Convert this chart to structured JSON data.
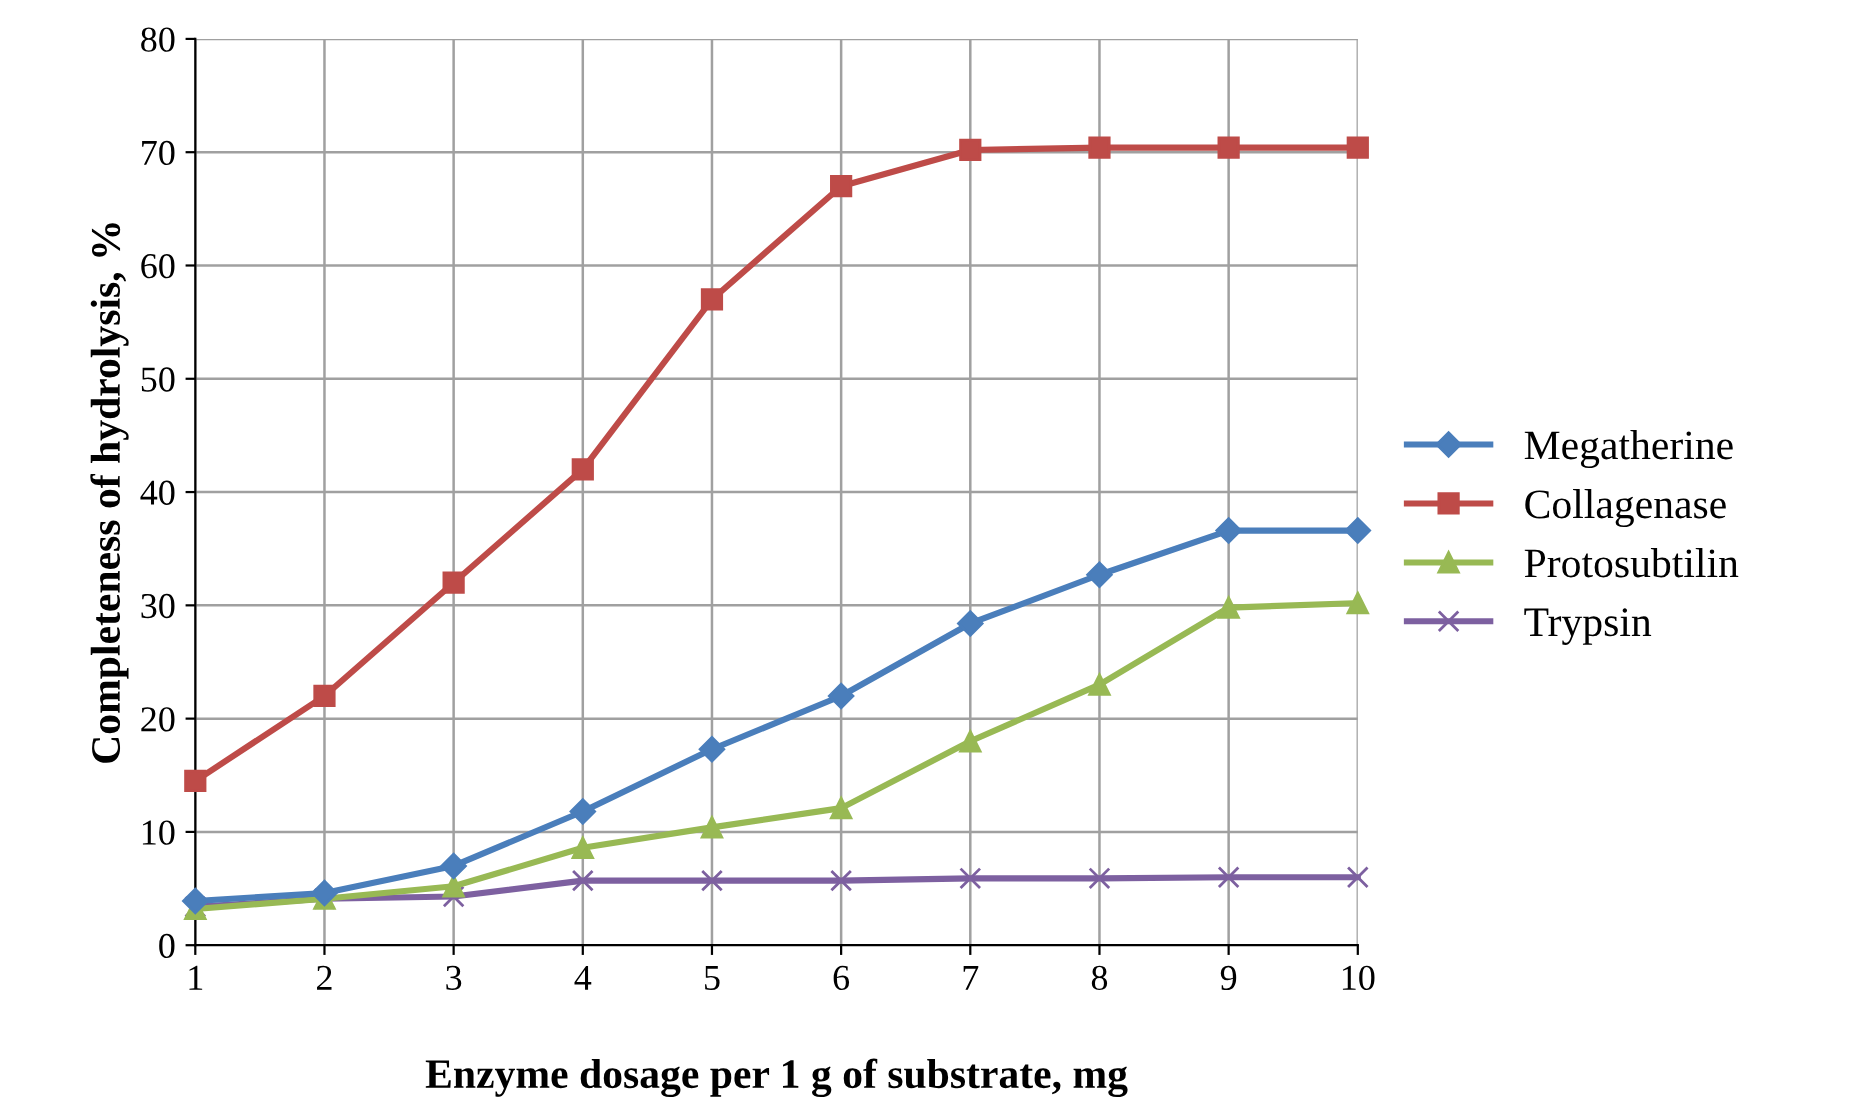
{
  "chart_data": {
    "type": "line",
    "xlabel": "Enzyme dosage per 1 g of substrate, mg",
    "ylabel": "Completeness of hydrolysis, %",
    "x": [
      1,
      2,
      3,
      4,
      5,
      6,
      7,
      8,
      9,
      10
    ],
    "series": [
      {
        "name": "Megatherine",
        "color": "#4a7ebb",
        "marker": "diamond",
        "values": [
          3.9,
          4.6,
          7.0,
          11.8,
          17.3,
          22.0,
          28.4,
          32.7,
          36.6,
          36.6
        ]
      },
      {
        "name": "Collagenase",
        "color": "#be4b48",
        "marker": "square",
        "values": [
          14.5,
          22.0,
          32.0,
          42.0,
          57.0,
          67.0,
          70.2,
          70.4,
          70.4,
          70.4
        ]
      },
      {
        "name": "Protosubtilin",
        "color": "#98b954",
        "marker": "triangle",
        "values": [
          3.2,
          4.1,
          5.2,
          8.6,
          10.4,
          12.1,
          18.0,
          23.0,
          29.8,
          30.2
        ]
      },
      {
        "name": "Trypsin",
        "color": "#7d60a0",
        "marker": "cross",
        "values": [
          3.4,
          4.1,
          4.3,
          5.7,
          5.7,
          5.7,
          5.9,
          5.9,
          6.0,
          6.0
        ]
      }
    ],
    "xlim": [
      1,
      10
    ],
    "xticks": [
      1,
      2,
      3,
      4,
      5,
      6,
      7,
      8,
      9,
      10
    ],
    "ylim": [
      0,
      80
    ],
    "yticks": [
      0,
      10,
      20,
      30,
      40,
      50,
      60,
      70,
      80
    ],
    "grid": true,
    "legend": "right",
    "line_style": "solid"
  }
}
